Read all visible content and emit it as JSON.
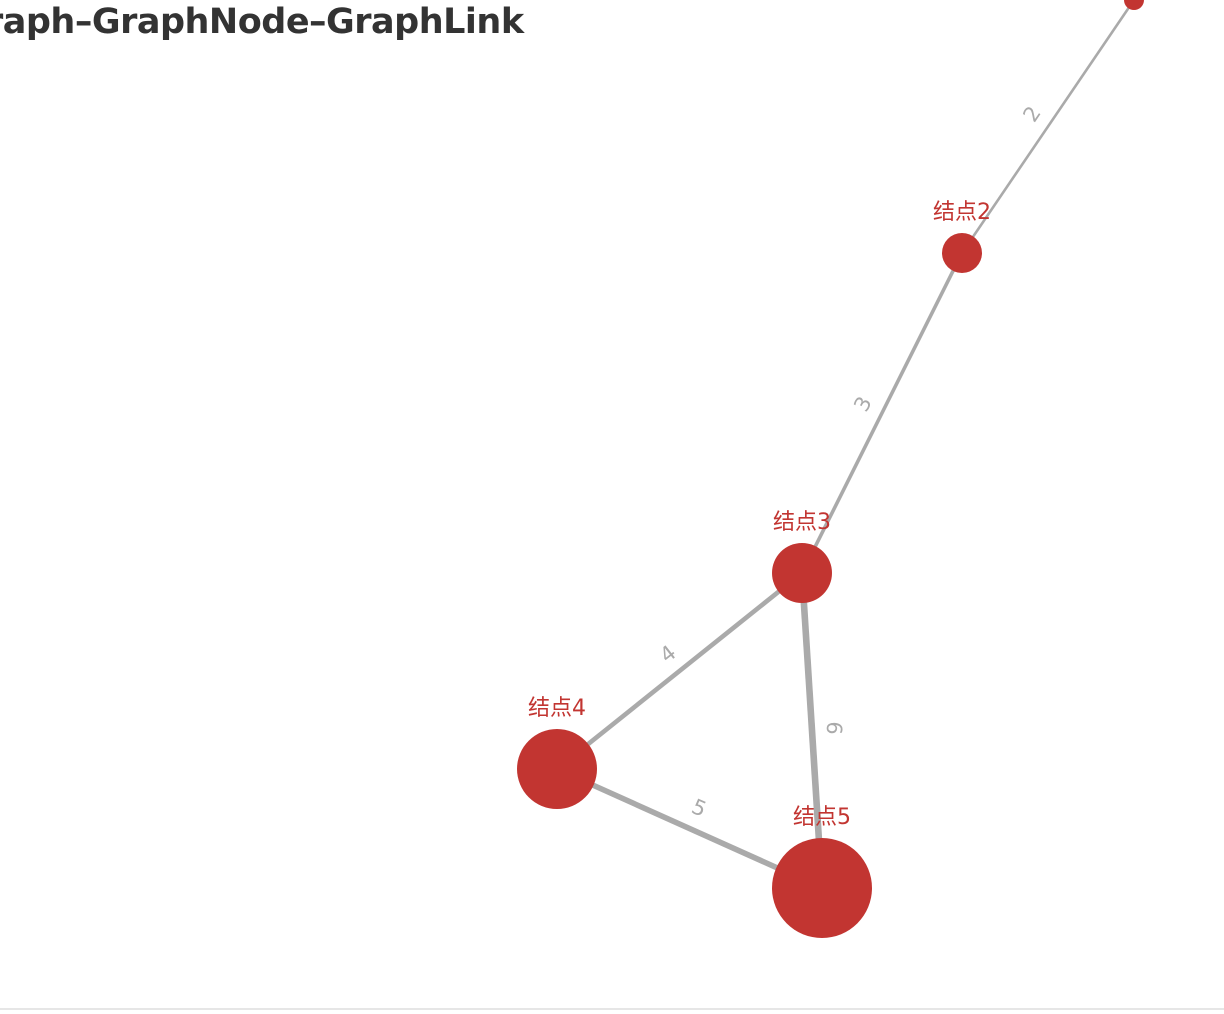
{
  "title": "raph–GraphNode–GraphLink",
  "colors": {
    "node": "#c23531",
    "link": "#aaaaaa",
    "link_label": "#aaaaaa",
    "title": "#333333"
  },
  "chart_data": {
    "type": "graph",
    "nodes": [
      {
        "id": "n1",
        "label": ""
      },
      {
        "id": "n2",
        "label": "结点2"
      },
      {
        "id": "n3",
        "label": "结点3"
      },
      {
        "id": "n4",
        "label": "结点4"
      },
      {
        "id": "n5",
        "label": "结点5"
      }
    ],
    "links": [
      {
        "source": "n1",
        "target": "n2",
        "value": 2,
        "label": "2"
      },
      {
        "source": "n2",
        "target": "n3",
        "value": 3,
        "label": "3"
      },
      {
        "source": "n3",
        "target": "n4",
        "value": 4,
        "label": "4"
      },
      {
        "source": "n4",
        "target": "n5",
        "value": 5,
        "label": "5"
      },
      {
        "source": "n3",
        "target": "n5",
        "value": 6,
        "label": "6"
      }
    ]
  }
}
